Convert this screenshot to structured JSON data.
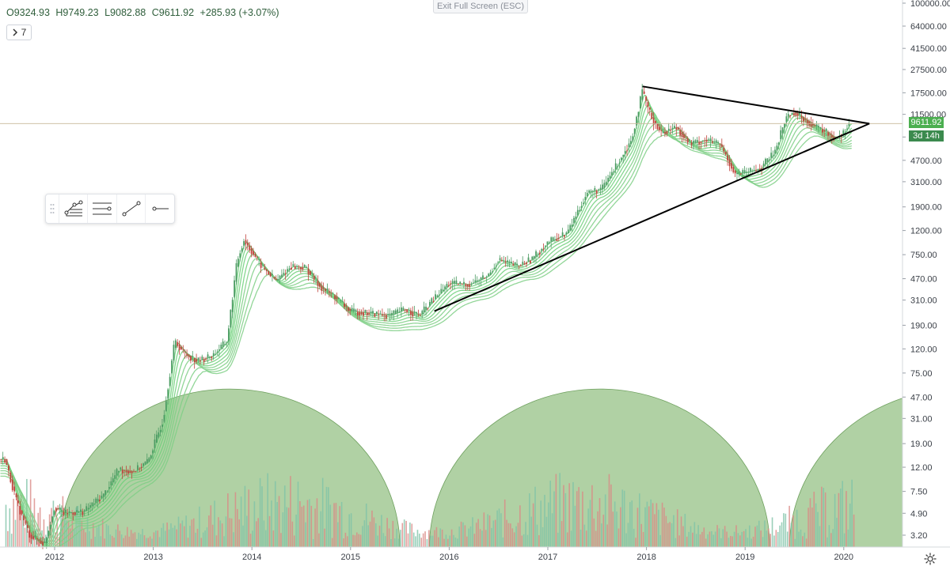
{
  "ohlc": {
    "open": "O9324.93",
    "high": "H9749.23",
    "low": "L9082.88",
    "close": "C9611.92",
    "change": "+285.93 (+3.07%)"
  },
  "indicator_toggle": {
    "icon": "chevron-right-icon",
    "count": "7"
  },
  "exit_fullscreen_label": "Exit Full Screen (ESC)",
  "toolbar": {
    "tools": [
      {
        "name": "pitchfork-tool",
        "icon": "pitchfork-icon"
      },
      {
        "name": "fib-retracement-tool",
        "icon": "fib-levels-icon"
      },
      {
        "name": "trend-line-tool",
        "icon": "trend-line-icon"
      },
      {
        "name": "horizontal-ray-tool",
        "icon": "horizontal-ray-icon"
      }
    ]
  },
  "price_badges": {
    "last_price": "9611.92",
    "countdown": "3d 14h"
  },
  "colors": {
    "badge_green": "#4caf50",
    "badge_dark_green": "#3b8a4e",
    "candle_up": "#4c9c63",
    "candle_down": "#c0413b",
    "ribbon_green": "#6fd07a",
    "ribbon_red": "#e2767a",
    "volume_arc": "#8fbe7d"
  },
  "chart_data": {
    "type": "candlestick",
    "y_scale": "log",
    "ylim": [
      2.6,
      100000
    ],
    "xlim": [
      "2011-06",
      "2020-06"
    ],
    "y_ticks": [
      "100000.00",
      "64000.00",
      "41500.00",
      "27500.00",
      "17500.00",
      "11500.00",
      "7400.00",
      "4700.00",
      "3100.00",
      "1900.00",
      "1200.00",
      "750.00",
      "470.00",
      "310.00",
      "190.00",
      "120.00",
      "75.00",
      "47.00",
      "31.00",
      "19.00",
      "12.00",
      "7.50",
      "4.90",
      "3.20"
    ],
    "x_ticks": [
      "2012",
      "2013",
      "2014",
      "2015",
      "2016",
      "2017",
      "2018",
      "2019",
      "2020"
    ],
    "price_path": [
      [
        2011.5,
        14.0
      ],
      [
        2011.62,
        6.0
      ],
      [
        2011.75,
        3.2
      ],
      [
        2011.9,
        2.7
      ],
      [
        2012.0,
        5.5
      ],
      [
        2012.1,
        4.9
      ],
      [
        2012.3,
        5.1
      ],
      [
        2012.5,
        7.0
      ],
      [
        2012.65,
        11.5
      ],
      [
        2012.8,
        11.0
      ],
      [
        2012.95,
        13.5
      ],
      [
        2013.1,
        30.0
      ],
      [
        2013.22,
        140.0
      ],
      [
        2013.32,
        110.0
      ],
      [
        2013.45,
        95.0
      ],
      [
        2013.6,
        105.0
      ],
      [
        2013.75,
        140.0
      ],
      [
        2013.85,
        650.0
      ],
      [
        2013.92,
        1000.0
      ],
      [
        2014.0,
        800.0
      ],
      [
        2014.1,
        600.0
      ],
      [
        2014.25,
        450.0
      ],
      [
        2014.4,
        600.0
      ],
      [
        2014.55,
        580.0
      ],
      [
        2014.7,
        400.0
      ],
      [
        2014.85,
        330.0
      ],
      [
        2015.0,
        250.0
      ],
      [
        2015.2,
        240.0
      ],
      [
        2015.4,
        230.0
      ],
      [
        2015.55,
        260.0
      ],
      [
        2015.7,
        230.0
      ],
      [
        2015.85,
        320.0
      ],
      [
        2016.0,
        430.0
      ],
      [
        2016.2,
        420.0
      ],
      [
        2016.4,
        500.0
      ],
      [
        2016.5,
        680.0
      ],
      [
        2016.7,
        600.0
      ],
      [
        2016.85,
        700.0
      ],
      [
        2017.0,
        950.0
      ],
      [
        2017.2,
        1150.0
      ],
      [
        2017.4,
        2500.0
      ],
      [
        2017.55,
        2700.0
      ],
      [
        2017.7,
        4300.0
      ],
      [
        2017.85,
        7000.0
      ],
      [
        2017.96,
        18000.0
      ],
      [
        2018.05,
        11000.0
      ],
      [
        2018.15,
        8000.0
      ],
      [
        2018.3,
        9000.0
      ],
      [
        2018.45,
        6500.0
      ],
      [
        2018.6,
        7000.0
      ],
      [
        2018.75,
        6400.0
      ],
      [
        2018.9,
        3600.0
      ],
      [
        2019.0,
        3700.0
      ],
      [
        2019.15,
        4000.0
      ],
      [
        2019.3,
        5500.0
      ],
      [
        2019.42,
        11000.0
      ],
      [
        2019.5,
        12000.0
      ],
      [
        2019.6,
        10500.0
      ],
      [
        2019.72,
        9000.0
      ],
      [
        2019.82,
        8200.0
      ],
      [
        2019.9,
        7300.0
      ],
      [
        2020.0,
        8000.0
      ],
      [
        2020.05,
        9611.92
      ]
    ],
    "trendlines": [
      {
        "name": "descending-resistance",
        "from": [
          2017.96,
          19800.0
        ],
        "to": [
          2020.26,
          9600.0
        ]
      },
      {
        "name": "ascending-support",
        "from": [
          2015.85,
          250.0
        ],
        "to": [
          2020.26,
          9600.0
        ]
      }
    ],
    "horizontal_line": 9611.92,
    "volume_arcs": [
      {
        "start": 2012.05,
        "end": 2015.5
      },
      {
        "start": 2015.8,
        "end": 2019.25
      },
      {
        "start": 2019.45,
        "end": 2022.9
      }
    ]
  }
}
